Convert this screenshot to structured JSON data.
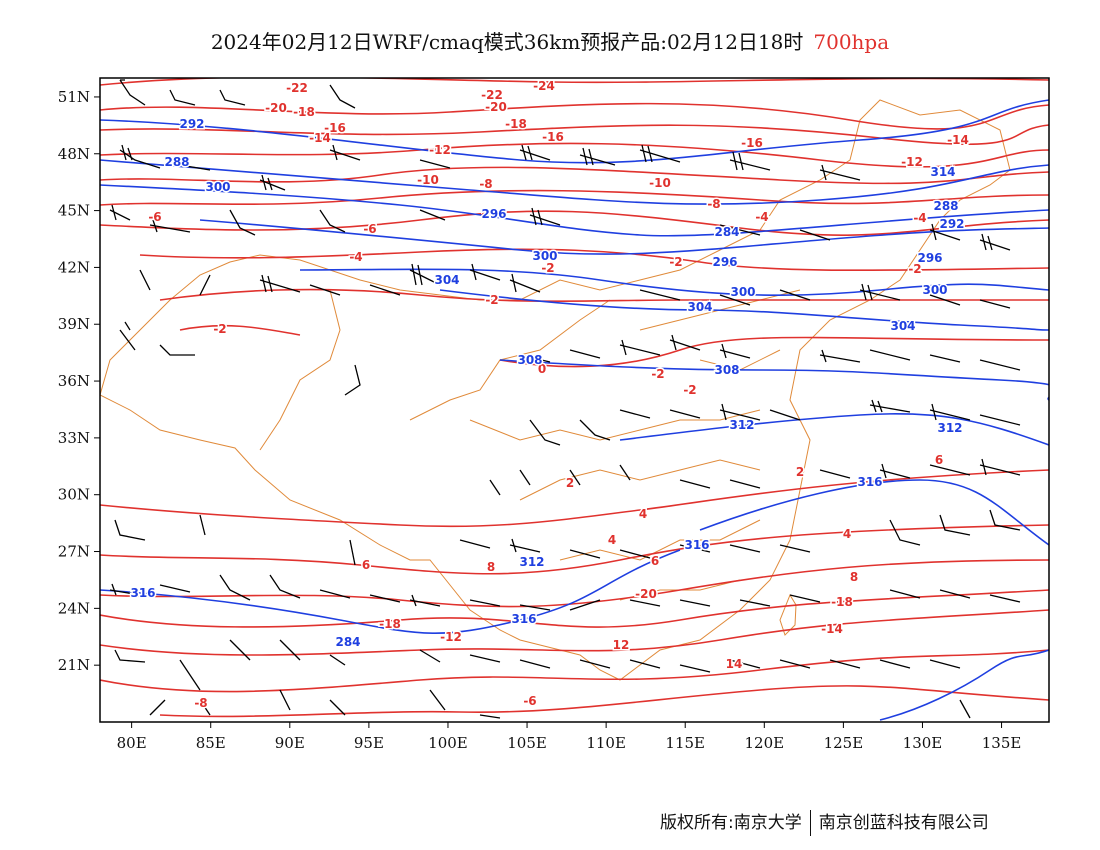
{
  "title": {
    "main": "2024年02月12日WRF/cmaq模式36km预报产品:02月12日18时",
    "level": "700hpa"
  },
  "map": {
    "lon_range": [
      78,
      138
    ],
    "lat_range": [
      18,
      52
    ],
    "lon_ticks": [
      "80E",
      "85E",
      "90E",
      "95E",
      "100E",
      "105E",
      "110E",
      "115E",
      "120E",
      "125E",
      "130E",
      "135E"
    ],
    "lat_ticks": [
      "51N",
      "48N",
      "45N",
      "42N",
      "39N",
      "36N",
      "33N",
      "30N",
      "27N",
      "24N",
      "21N"
    ],
    "colors": {
      "temperature": "#e0322e",
      "geopotential": "#1f3fe0",
      "boundary": "#e08a3a",
      "wind": "#000000",
      "frame": "#000000"
    }
  },
  "temperature_labels": [
    "-22",
    "-22",
    "-24",
    "-20",
    "-20",
    "-18",
    "-18",
    "-16",
    "-16",
    "-16",
    "-14",
    "-14",
    "-12",
    "-12",
    "-10",
    "-10",
    "-8",
    "-8",
    "-6",
    "-6",
    "-4",
    "-4",
    "-2",
    "-2",
    "-2",
    "-2",
    "-2",
    "-2",
    "0",
    "2",
    "2",
    "4",
    "4",
    "4",
    "6",
    "6",
    "8",
    "8",
    "-20",
    "-18",
    "-18",
    "-14",
    "-12",
    "12",
    "14",
    "-8",
    "-6",
    "6",
    "-4",
    "-2"
  ],
  "geopotential_labels": [
    "288",
    "292",
    "292",
    "296",
    "296",
    "296",
    "300",
    "300",
    "300",
    "300",
    "304",
    "304",
    "304",
    "308",
    "308",
    "312",
    "312",
    "312",
    "316",
    "316",
    "316",
    "316",
    "284",
    "288",
    "284",
    "314"
  ],
  "credit": {
    "left": "版权所有:南京大学",
    "right": "南京创蓝科技有限公司"
  }
}
